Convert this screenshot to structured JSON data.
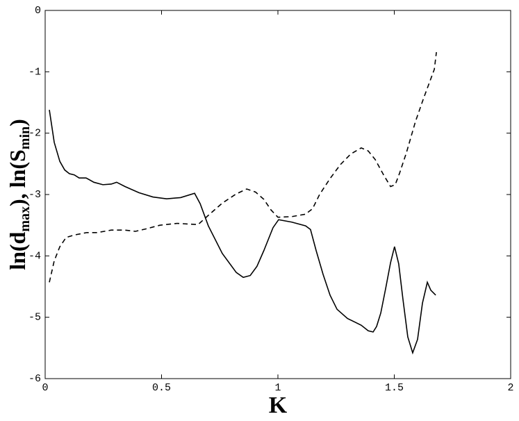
{
  "chart_data": {
    "type": "line",
    "xlabel": "K",
    "ylabel": {
      "parts": [
        "ln(d",
        "max",
        "), ln(S",
        "min",
        ")"
      ]
    },
    "xlim": [
      0,
      2
    ],
    "xticks": [
      0,
      0.5,
      1,
      1.5,
      2
    ],
    "ylim": [
      -6,
      0
    ],
    "yticks": [
      -6,
      -5,
      -4,
      -3,
      -2,
      -1,
      0
    ],
    "series": [
      {
        "color": "#000000",
        "dash": "solid",
        "x": [
          0.018,
          0.039,
          0.063,
          0.084,
          0.104,
          0.125,
          0.146,
          0.176,
          0.209,
          0.248,
          0.284,
          0.307,
          0.343,
          0.403,
          0.463,
          0.522,
          0.582,
          0.642,
          0.666,
          0.701,
          0.761,
          0.821,
          0.851,
          0.881,
          0.91,
          0.94,
          0.979,
          1.003,
          1.06,
          1.119,
          1.14,
          1.164,
          1.194,
          1.224,
          1.254,
          1.299,
          1.358,
          1.388,
          1.409,
          1.424,
          1.442,
          1.463,
          1.484,
          1.501,
          1.519,
          1.537,
          1.558,
          1.579,
          1.6,
          1.621,
          1.642,
          1.657,
          1.678
        ],
        "values": [
          -1.62,
          -2.15,
          -2.46,
          -2.6,
          -2.66,
          -2.68,
          -2.73,
          -2.73,
          -2.8,
          -2.84,
          -2.83,
          -2.8,
          -2.87,
          -2.97,
          -3.04,
          -3.07,
          -3.05,
          -2.98,
          -3.15,
          -3.51,
          -3.96,
          -4.27,
          -4.35,
          -4.32,
          -4.17,
          -3.91,
          -3.54,
          -3.41,
          -3.45,
          -3.51,
          -3.57,
          -3.91,
          -4.3,
          -4.64,
          -4.87,
          -5.02,
          -5.13,
          -5.22,
          -5.24,
          -5.15,
          -4.93,
          -4.53,
          -4.11,
          -3.85,
          -4.13,
          -4.7,
          -5.32,
          -5.58,
          -5.36,
          -4.77,
          -4.43,
          -4.56,
          -4.64
        ]
      },
      {
        "color": "#000000",
        "dash": "dashed",
        "x": [
          0.018,
          0.039,
          0.063,
          0.09,
          0.125,
          0.179,
          0.224,
          0.284,
          0.343,
          0.388,
          0.433,
          0.493,
          0.567,
          0.657,
          0.701,
          0.761,
          0.821,
          0.866,
          0.904,
          0.94,
          0.97,
          1.0,
          1.06,
          1.119,
          1.149,
          1.179,
          1.224,
          1.269,
          1.313,
          1.358,
          1.388,
          1.418,
          1.454,
          1.484,
          1.504,
          1.522,
          1.552,
          1.591,
          1.627,
          1.672,
          1.681
        ],
        "values": [
          -4.43,
          -4.08,
          -3.85,
          -3.7,
          -3.66,
          -3.62,
          -3.62,
          -3.58,
          -3.58,
          -3.6,
          -3.56,
          -3.5,
          -3.47,
          -3.49,
          -3.34,
          -3.14,
          -2.99,
          -2.91,
          -2.96,
          -3.08,
          -3.25,
          -3.37,
          -3.36,
          -3.32,
          -3.23,
          -3.0,
          -2.74,
          -2.51,
          -2.34,
          -2.24,
          -2.29,
          -2.43,
          -2.68,
          -2.87,
          -2.84,
          -2.66,
          -2.32,
          -1.81,
          -1.42,
          -0.96,
          -0.68
        ]
      }
    ]
  }
}
